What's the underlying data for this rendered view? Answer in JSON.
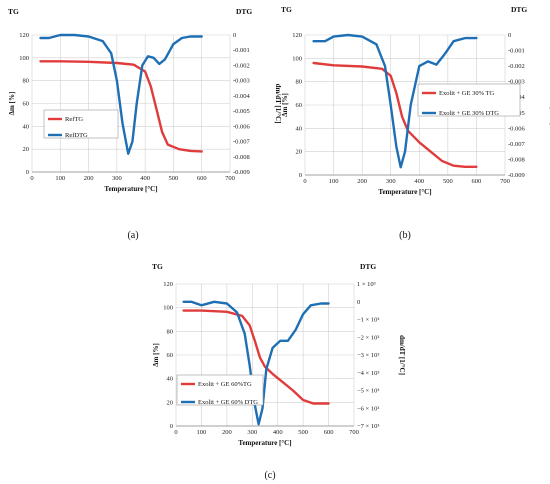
{
  "chart_data": [
    {
      "type": "line",
      "caption": "(a)",
      "left_axis_title": "TG",
      "right_axis_title": "DTG",
      "ylabel_left": "Δm [%]",
      "ylabel_right": "dm/dT [1/°C]",
      "xlabel": "Temperature [°C]",
      "x_ticks": [
        "0",
        "100",
        "200",
        "300",
        "400",
        "500",
        "600",
        "700"
      ],
      "y_left_ticks": [
        "0",
        "20",
        "40",
        "60",
        "80",
        "100",
        "120"
      ],
      "y_right_ticks": [
        "0",
        "-0.001",
        "-0.002",
        "-0.003",
        "-0.004",
        "-0.005",
        "-0.006",
        "-0.007",
        "-0.008",
        "-0.009"
      ],
      "xlim": [
        0,
        700
      ],
      "ylim_left": [
        0,
        120
      ],
      "ylim_right": [
        -0.009,
        0
      ],
      "legend_position": "left",
      "series": [
        {
          "name": "RefTG",
          "axis": "left",
          "color": "#e03c3c",
          "x": [
            30,
            100,
            200,
            300,
            360,
            400,
            420,
            440,
            460,
            480,
            520,
            560,
            600
          ],
          "y": [
            97,
            97,
            96.5,
            95.5,
            94,
            88,
            75,
            55,
            35,
            24,
            20,
            18.5,
            18
          ]
        },
        {
          "name": "RefDTG",
          "axis": "right",
          "color": "#1f6fb5",
          "x": [
            30,
            60,
            100,
            150,
            200,
            250,
            280,
            300,
            320,
            340,
            355,
            370,
            390,
            410,
            430,
            450,
            470,
            500,
            530,
            560,
            600
          ],
          "y": [
            -0.0002,
            -0.0002,
            0,
            0,
            -0.0001,
            -0.0004,
            -0.0012,
            -0.003,
            -0.0058,
            -0.0078,
            -0.007,
            -0.0045,
            -0.002,
            -0.0014,
            -0.0015,
            -0.0019,
            -0.0016,
            -0.0006,
            -0.0002,
            -0.0001,
            -0.0001
          ]
        }
      ]
    },
    {
      "type": "line",
      "caption": "(b)",
      "left_axis_title": "TG",
      "right_axis_title": "DTG",
      "ylabel_left": "Δm [%]",
      "ylabel_right": "dm/dT [1/°C]",
      "xlabel": "Temperature [°C]",
      "x_ticks": [
        "0",
        "100",
        "200",
        "300",
        "400",
        "500",
        "600",
        "700"
      ],
      "y_left_ticks": [
        "0",
        "20",
        "40",
        "60",
        "80",
        "100",
        "120"
      ],
      "y_right_ticks": [
        "0",
        "-0.001",
        "-0.002",
        "-0.003",
        "-0.004",
        "-0.005",
        "-0.006",
        "-0.007",
        "-0.008",
        "-0.009"
      ],
      "xlim": [
        0,
        700
      ],
      "ylim_left": [
        0,
        120
      ],
      "ylim_right": [
        -0.009,
        0
      ],
      "legend_position": "right",
      "series": [
        {
          "name": "Exolit + GE 30% TG",
          "axis": "left",
          "color": "#e03c3c",
          "x": [
            30,
            100,
            200,
            270,
            300,
            320,
            340,
            360,
            400,
            440,
            480,
            520,
            560,
            600
          ],
          "y": [
            96,
            94,
            93,
            91,
            85,
            70,
            50,
            38,
            28,
            20,
            12,
            8,
            7,
            7
          ]
        },
        {
          "name": "Exolit + GE 30% DTG",
          "axis": "right",
          "color": "#1f6fb5",
          "x": [
            30,
            70,
            100,
            150,
            200,
            250,
            280,
            300,
            320,
            335,
            350,
            370,
            400,
            430,
            460,
            490,
            520,
            560,
            600
          ],
          "y": [
            -0.0004,
            -0.0004,
            -0.0001,
            0,
            -0.0001,
            -0.0006,
            -0.002,
            -0.0045,
            -0.0072,
            -0.0085,
            -0.0075,
            -0.0045,
            -0.002,
            -0.0017,
            -0.0019,
            -0.0012,
            -0.0004,
            -0.0002,
            -0.0002
          ]
        }
      ]
    },
    {
      "type": "line",
      "caption": "(c)",
      "left_axis_title": "TG",
      "right_axis_title": "DTG",
      "ylabel_left": "Δm [%]",
      "ylabel_right": "dm/dT [1/°C]",
      "xlabel": "Temperature [°C]",
      "x_ticks": [
        "0",
        "100",
        "200",
        "300",
        "400",
        "500",
        "600",
        "700"
      ],
      "y_left_ticks": [
        "0",
        "20",
        "40",
        "60",
        "80",
        "100",
        "120"
      ],
      "y_right_ticks": [
        "1 × 10³",
        "0",
        "−1 × 10³",
        "−2 × 10³",
        "−3 × 10³",
        "−4 × 10³",
        "−5 × 10³",
        "−6 × 10³",
        "−7 × 10³"
      ],
      "xlim": [
        0,
        700
      ],
      "ylim_left": [
        0,
        120
      ],
      "ylim_right": [
        -7000,
        1000
      ],
      "legend_position": "left",
      "series": [
        {
          "name": "Exolit + GE 60%TG",
          "axis": "left",
          "color": "#e03c3c",
          "x": [
            30,
            100,
            200,
            260,
            290,
            310,
            330,
            350,
            380,
            420,
            460,
            500,
            540,
            600
          ],
          "y": [
            97.5,
            97.5,
            96.5,
            93,
            85,
            72,
            58,
            50,
            44,
            37,
            30,
            22,
            19,
            19
          ]
        },
        {
          "name": "Exolit + GE 60% DTG",
          "axis": "right",
          "color": "#1f6fb5",
          "x": [
            30,
            60,
            100,
            150,
            200,
            240,
            270,
            290,
            310,
            325,
            340,
            355,
            380,
            410,
            440,
            470,
            500,
            530,
            570,
            600
          ],
          "y": [
            0,
            0,
            -200,
            0,
            -100,
            -600,
            -1800,
            -3600,
            -5800,
            -6900,
            -6000,
            -3800,
            -2600,
            -2200,
            -2200,
            -1600,
            -700,
            -200,
            -100,
            -100
          ]
        }
      ]
    }
  ]
}
